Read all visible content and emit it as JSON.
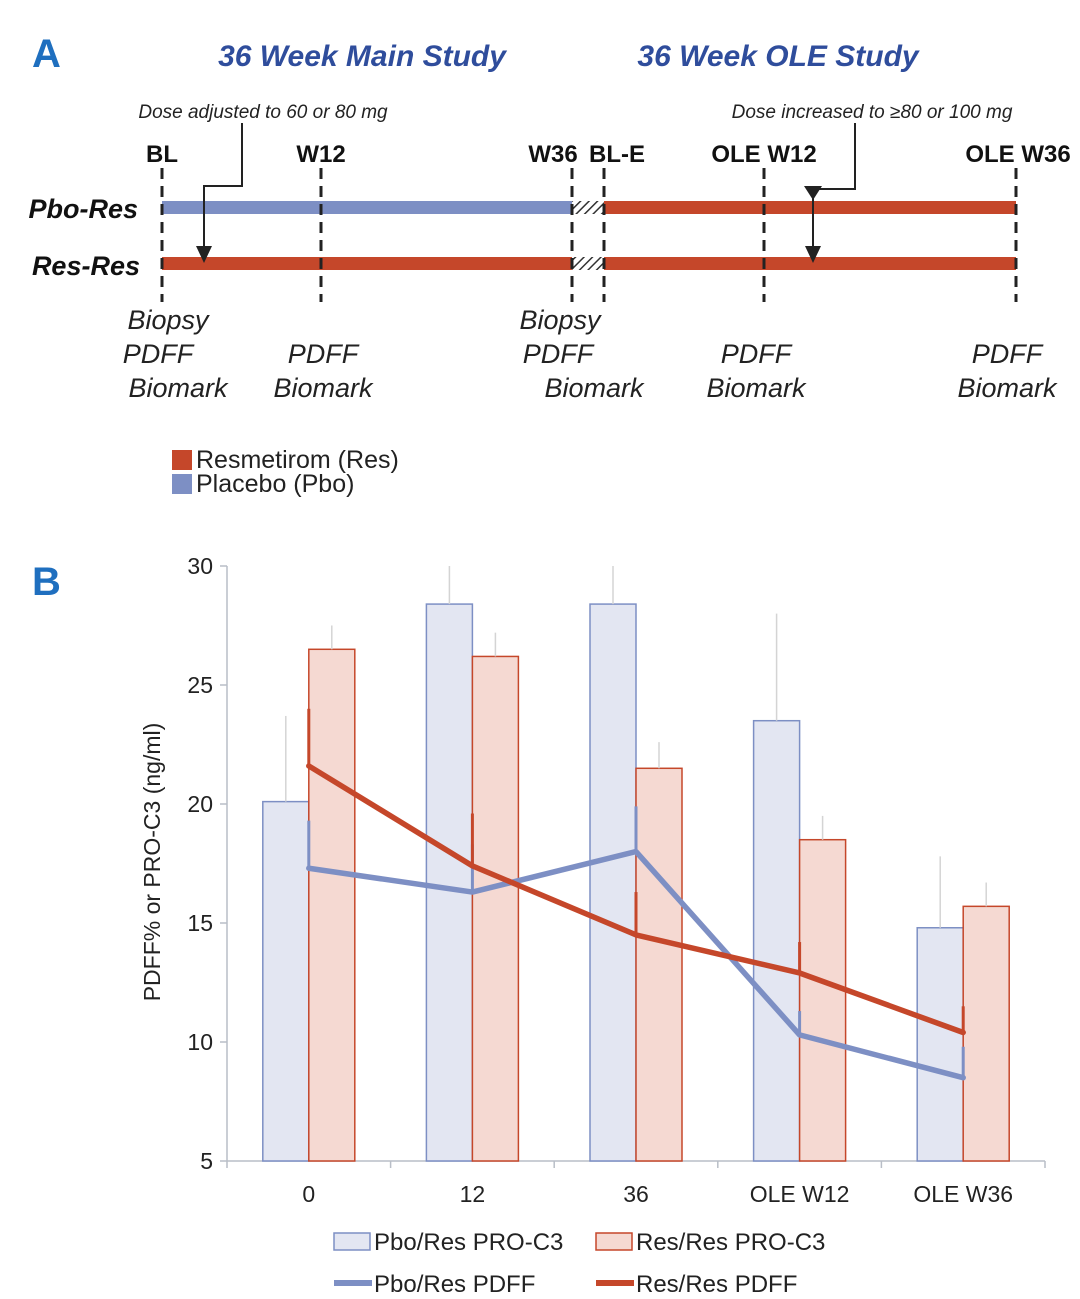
{
  "panel_a": {
    "letter": "A",
    "main_study_title": "36 Week Main Study",
    "ole_study_title": "36 Week OLE Study",
    "dose_note_1": "Dose adjusted to 60 or 80 mg",
    "dose_note_2": "Dose increased to ≥80 or 100 mg",
    "timepoints": [
      "BL",
      "W12",
      "W36",
      "BL-E",
      "OLE W12",
      "OLE W36"
    ],
    "arms": [
      "Pbo-Res",
      "Res-Res"
    ],
    "procedures": [
      [
        "Biopsy",
        "PDFF",
        "Biomark"
      ],
      [
        "PDFF",
        "Biomark"
      ],
      [
        "Biopsy",
        "PDFF",
        "Biomark"
      ],
      [
        "PDFF",
        "Biomark"
      ],
      [
        "PDFF",
        "Biomark"
      ]
    ],
    "legend": [
      "Resmetirom (Res)",
      "Placebo (Pbo)"
    ],
    "colors": {
      "res": "#c5472a",
      "pbo": "#7d8fc4",
      "title": "#2f4d9c",
      "letter": "#1f6fbf"
    }
  },
  "chart_data": {
    "type": "bar",
    "letter": "B",
    "categories": [
      "0",
      "12",
      "36",
      "OLE W12",
      "OLE W36"
    ],
    "ylabel": "PDFF% or PRO-C3 (ng/ml)",
    "ylim": [
      5,
      30
    ],
    "yticks": [
      5,
      10,
      15,
      20,
      25,
      30
    ],
    "series": [
      {
        "name": "Pbo/Res PRO-C3",
        "kind": "bar",
        "values": [
          20.1,
          28.4,
          28.4,
          23.5,
          14.8
        ],
        "err": [
          3.6,
          1.6,
          1.6,
          4.5,
          3.0
        ],
        "fill": "#e3e6f2",
        "stroke": "#7d8fc4"
      },
      {
        "name": "Res/Res PRO-C3",
        "kind": "bar",
        "values": [
          26.5,
          26.2,
          21.5,
          18.5,
          15.7
        ],
        "err": [
          1.0,
          1.0,
          1.1,
          1.0,
          1.0
        ],
        "fill": "#f5d9d2",
        "stroke": "#c5472a"
      },
      {
        "name": "Pbo/Res PDFF",
        "kind": "line",
        "values": [
          17.3,
          16.3,
          18.0,
          10.3,
          8.5
        ],
        "err": [
          2.0,
          2.0,
          1.9,
          1.0,
          1.3
        ],
        "color": "#7d8fc4"
      },
      {
        "name": "Res/Res PDFF",
        "kind": "line",
        "values": [
          21.6,
          17.4,
          14.5,
          12.9,
          10.4
        ],
        "err": [
          2.4,
          2.2,
          1.8,
          1.3,
          1.1
        ],
        "color": "#c5472a"
      }
    ],
    "legend_position": "bottom"
  }
}
